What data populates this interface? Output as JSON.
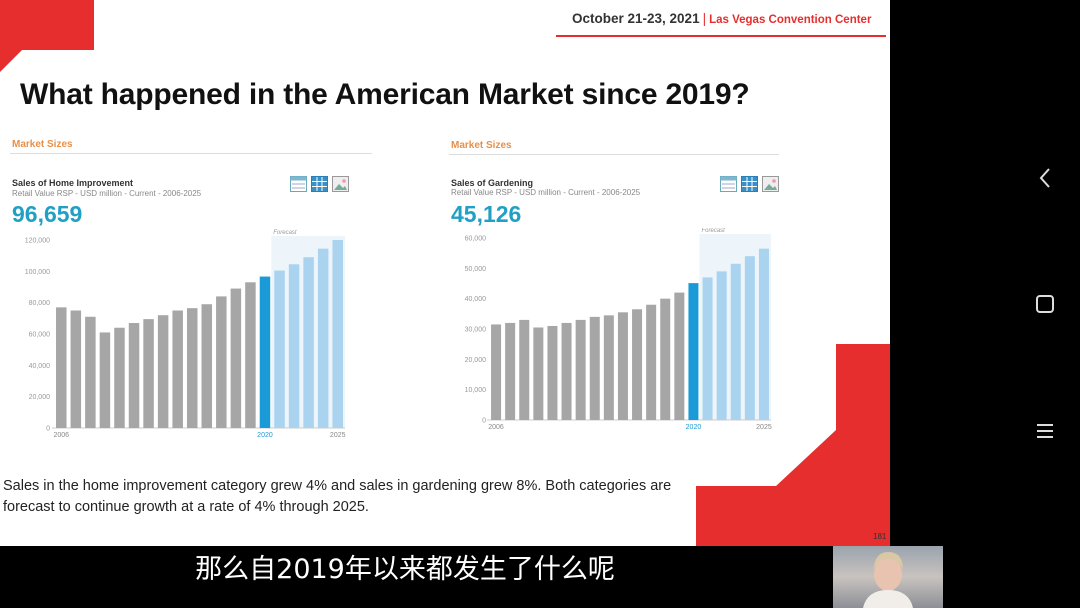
{
  "header": {
    "event_date": "October 21-23, 2021",
    "separator": "|",
    "venue": "Las Vegas Convention Center"
  },
  "slide": {
    "title": "What happened in the American Market since 2019?",
    "body": "Sales in the home improvement category grew 4% and  sales in gardening grew 8%.  Both categories are forecast to continue growth at a rate of 4% through 2025.",
    "page_mark": "181"
  },
  "panels": [
    {
      "section": "Market Sizes",
      "chart_title": "Sales of Home Improvement",
      "chart_subtitle": "Retail Value RSP - USD million - Current - 2006-2025",
      "headline_value": "96,659"
    },
    {
      "section": "Market Sizes",
      "chart_title": "Sales of Gardening",
      "chart_subtitle": "Retail Value RSP - USD million - Current - 2006-2025",
      "headline_value": "45,126"
    }
  ],
  "chart_data": [
    {
      "type": "bar",
      "title": "Sales of Home Improvement",
      "subtitle": "Retail Value RSP - USD million - Current - 2006-2025",
      "categories": [
        "2006",
        "2007",
        "2008",
        "2009",
        "2010",
        "2011",
        "2012",
        "2013",
        "2014",
        "2015",
        "2016",
        "2017",
        "2018",
        "2019",
        "2020",
        "2021",
        "2022",
        "2023",
        "2024",
        "2025"
      ],
      "values": [
        77000,
        75000,
        71000,
        61000,
        64000,
        67000,
        69500,
        72000,
        75000,
        76500,
        79000,
        84000,
        89000,
        93000,
        96659,
        100500,
        104500,
        109000,
        114500,
        120000
      ],
      "highlight_index": 14,
      "forecast_start_index": 15,
      "forecast_label": "Forecast",
      "x_tick_labels": {
        "0": "2006",
        "14": "2020",
        "19": "2025"
      },
      "ylim": [
        0,
        120000
      ],
      "y_ticks": [
        "0",
        "20,000",
        "40,000",
        "60,000",
        "80,000",
        "100,000",
        "120,000"
      ],
      "colors": {
        "actual": "#a6a6a6",
        "current": "#1a9ad6",
        "forecast": "#a9d3ef",
        "forecast_bg": "#eef5fa"
      }
    },
    {
      "type": "bar",
      "title": "Sales of Gardening",
      "subtitle": "Retail Value RSP - USD million - Current - 2006-2025",
      "categories": [
        "2006",
        "2007",
        "2008",
        "2009",
        "2010",
        "2011",
        "2012",
        "2013",
        "2014",
        "2015",
        "2016",
        "2017",
        "2018",
        "2019",
        "2020",
        "2021",
        "2022",
        "2023",
        "2024",
        "2025"
      ],
      "values": [
        31500,
        32000,
        33000,
        30500,
        31000,
        32000,
        33000,
        34000,
        34500,
        35500,
        36500,
        38000,
        40000,
        42000,
        45126,
        47000,
        49000,
        51500,
        54000,
        56500
      ],
      "highlight_index": 14,
      "forecast_start_index": 15,
      "forecast_label": "Forecast",
      "x_tick_labels": {
        "0": "2006",
        "14": "2020",
        "19": "2025"
      },
      "ylim": [
        0,
        60000
      ],
      "y_ticks": [
        "0",
        "10,000",
        "20,000",
        "30,000",
        "40,000",
        "50,000",
        "60,000"
      ],
      "colors": {
        "actual": "#a6a6a6",
        "current": "#1a9ad6",
        "forecast": "#a9d3ef",
        "forecast_bg": "#eef5fa"
      }
    }
  ],
  "caption": "那么自2019年以来都发生了什么呢",
  "nav_icons": [
    "back-chevron-icon",
    "home-square-icon",
    "menu-lines-icon"
  ],
  "icons": [
    "table-icon",
    "grid-icon",
    "image-icon"
  ],
  "colors": {
    "brand_red": "#e62e2e",
    "accent_blue": "#21a0c6",
    "section_orange": "#e8904a"
  }
}
